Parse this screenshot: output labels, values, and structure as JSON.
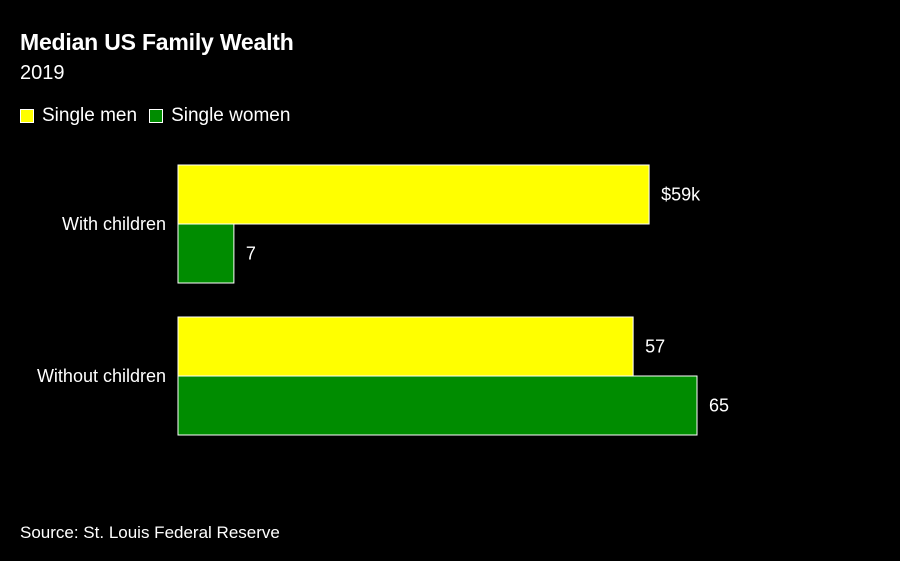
{
  "chart_data": {
    "type": "bar",
    "orientation": "horizontal",
    "title": "Median US Family Wealth",
    "subtitle": "2019",
    "categories": [
      "With children",
      "Without children"
    ],
    "series": [
      {
        "name": "Single men",
        "color": "#ffff00",
        "values": [
          59,
          57
        ],
        "labels": [
          "$59k",
          "57"
        ]
      },
      {
        "name": "Single women",
        "color": "#008c00",
        "values": [
          7,
          65
        ],
        "labels": [
          "7",
          "65"
        ]
      }
    ],
    "xlim": [
      0,
      65
    ],
    "grid": false,
    "legend_position": "top-left"
  },
  "source": "Source: St. Louis Federal Reserve"
}
